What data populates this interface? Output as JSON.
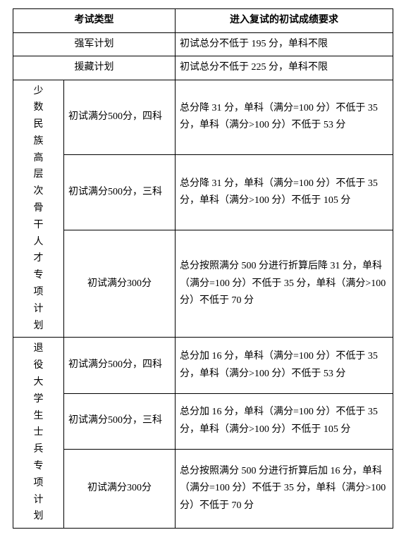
{
  "header": {
    "col1": "考试类型",
    "col2": "进入复试的初试成绩要求"
  },
  "rows": {
    "qiangjun": {
      "label": "强军计划",
      "req": "初试总分不低于 195 分，单科不限"
    },
    "yuanzang": {
      "label": "援藏计划",
      "req": "初试总分不低于 225 分，单科不限"
    },
    "minority": {
      "label": "少数民族高层次骨干人才专项计划",
      "r1": {
        "cond": "初试满分500分，四科",
        "req": "总分降 31 分，单科（满分=100 分）不低于 35 分，单科（满分>100 分）不低于 53 分"
      },
      "r2": {
        "cond": "初试满分500分，三科",
        "req": "总分降 31 分，单科（满分=100 分）不低于 35 分，单科（满分>100 分）不低于 105 分"
      },
      "r3": {
        "cond": "初试满分300分",
        "req": "总分按照满分 500 分进行折算后降 31 分，单科（满分=100 分）不低于 35 分，单科（满分>100 分）不低于 70 分"
      }
    },
    "veteran": {
      "label": "退役大学生士兵专项计划",
      "r1": {
        "cond": "初试满分500分，四科",
        "req": "总分加 16 分，单科（满分=100 分）不低于 35 分，单科（满分>100 分）不低于 53 分"
      },
      "r2": {
        "cond": "初试满分500分，三科",
        "req": "总分加 16 分，单科（满分=100 分）不低于 35 分，单科（满分>100 分）不低于 105 分"
      },
      "r3": {
        "cond": "初试满分300分",
        "req": "总分按照满分 500 分进行折算后加 16 分，单科（满分=100 分）不低于 35 分，单科（满分>100 分）不低于 70 分"
      }
    }
  }
}
